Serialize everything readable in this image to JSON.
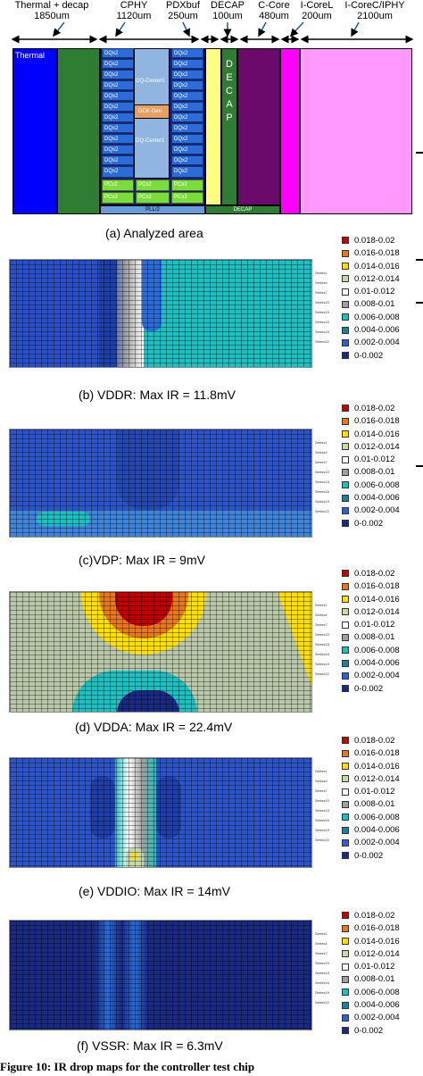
{
  "header": {
    "sections": [
      {
        "name": "Thermal + decap",
        "size": "1850um"
      },
      {
        "name": "CPHY",
        "size": "1120um"
      },
      {
        "name": "PDXbuf",
        "size": "250um"
      },
      {
        "name": "DECAP",
        "size": "100um"
      },
      {
        "name": "C-Core",
        "size": "480um"
      },
      {
        "name": "I-CoreL",
        "size": "200um"
      },
      {
        "name": "I-CoreC/IPHY",
        "size": "2100um"
      }
    ]
  },
  "floorplan": {
    "thermal_label": "Thermal",
    "dq_label": "DQx2",
    "center0_label": "DQ-Center0",
    "dck_label": "DCK-Gen",
    "center1_label": "DQ-Center1",
    "green_label": "PCx2",
    "pll_label": "PLL/2",
    "decap_bottom_label": "DECAP",
    "decap_vertical_letters": [
      "D",
      "E",
      "C",
      "A",
      "P"
    ]
  },
  "captions": {
    "a": "(a) Analyzed area",
    "b": "(b) VDDR: Max IR = 11.8mV",
    "c": "(c)VDP: Max IR = 9mV",
    "d": "(d) VDDA: Max IR = 22.4mV",
    "e": "(e) VDDIO: Max IR = 14mV",
    "f": "(f) VSSR: Max IR = 6.3mV",
    "figure": "Figure 10: IR drop maps for the controller test chip"
  },
  "legend": {
    "items": [
      {
        "label": "0.018-0.02",
        "color": "#c00000"
      },
      {
        "label": "0.016-0.018",
        "color": "#e87722"
      },
      {
        "label": "0.014-0.016",
        "color": "#ffe000"
      },
      {
        "label": "0.012-0.014",
        "color": "#c8d8a8"
      },
      {
        "label": "0.01-0.012",
        "color": "#ffffff"
      },
      {
        "label": "0.008-0.01",
        "color": "#a0a0a0"
      },
      {
        "label": "0.006-0.008",
        "color": "#20c0c0"
      },
      {
        "label": "0.004-0.006",
        "color": "#2080a0"
      },
      {
        "label": "0.002-0.004",
        "color": "#3060d0"
      },
      {
        "label": "0-0.002",
        "color": "#1a2a80"
      }
    ]
  },
  "series_labels": [
    "Series1",
    "Series4",
    "Series7",
    "Series10",
    "Series13",
    "Series16",
    "Series19",
    "Series22"
  ]
}
